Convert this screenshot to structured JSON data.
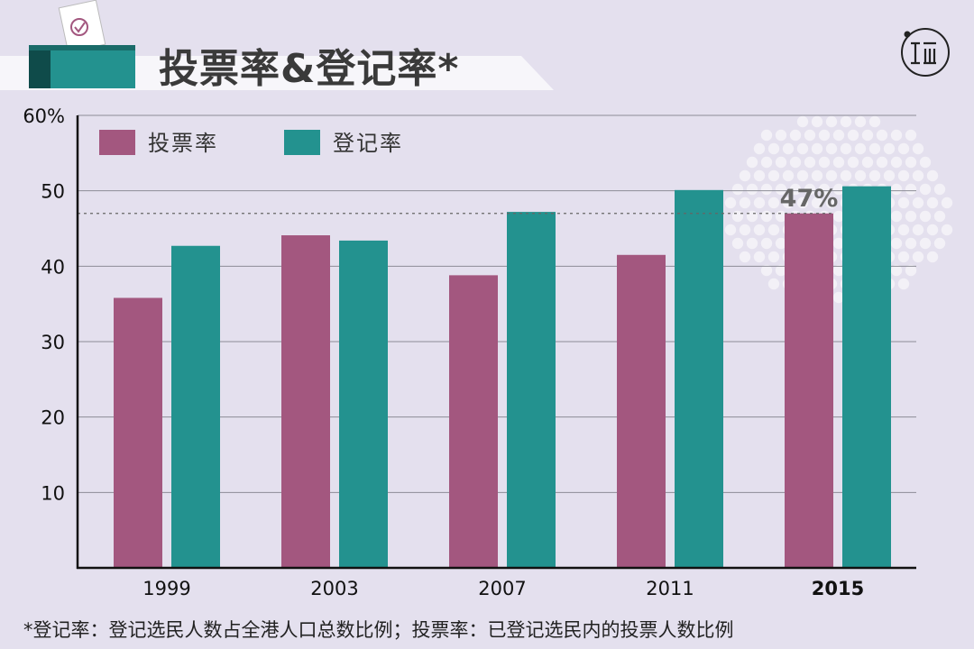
{
  "header": {
    "title": "投票率&登记率*"
  },
  "footnote": "*登记率：登记选民人数占全港人口总数比例；投票率：已登记选民内的投票人数比例",
  "colors": {
    "turnout": "#a3577f",
    "registration": "#23928f",
    "header_band": "#f7f6fa",
    "ballot_box": "#23928f",
    "ballot_box_dark": "#0f4b4a"
  },
  "icons": {
    "ballot_box": "ballot-box-icon",
    "logo": "initium-logo-icon"
  },
  "chart_data": {
    "type": "bar",
    "title": "投票率&登记率*",
    "categories": [
      "1999",
      "2003",
      "2007",
      "2011",
      "2015"
    ],
    "highlight_category": "2015",
    "series": [
      {
        "name": "投票率",
        "color": "#a3577f",
        "values": [
          35.8,
          44.1,
          38.8,
          41.5,
          47.0
        ]
      },
      {
        "name": "登记率",
        "color": "#23928f",
        "values": [
          42.7,
          43.4,
          47.2,
          50.1,
          50.6
        ]
      }
    ],
    "ylim": [
      0,
      60
    ],
    "yticks": [
      "",
      "10",
      "20",
      "30",
      "40",
      "50",
      "60%"
    ],
    "grid": true,
    "legend": "top-left",
    "annotation": {
      "text": "47%",
      "value": 47,
      "category": "2015"
    },
    "xlabel": "",
    "ylabel": ""
  }
}
